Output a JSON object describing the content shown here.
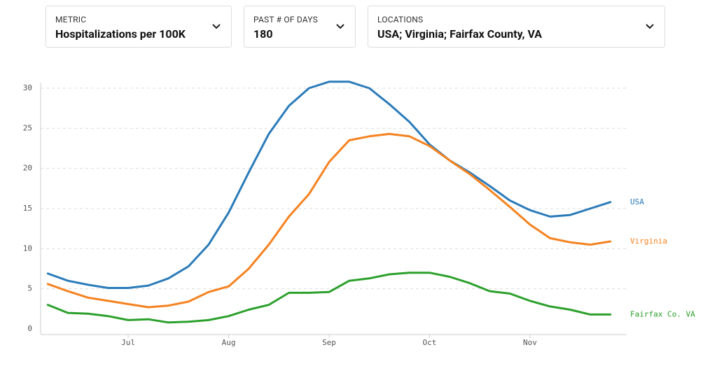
{
  "controls": [
    {
      "label": "METRIC",
      "value": "Hospitalizations per 100K"
    },
    {
      "label": "PAST # OF DAYS",
      "value": "180"
    },
    {
      "label": "LOCATIONS",
      "value": "USA; Virginia; Fairfax County, VA"
    }
  ],
  "chart_data": {
    "type": "line",
    "categories": [
      null,
      null,
      null,
      null,
      "Jul",
      null,
      null,
      null,
      null,
      "Aug",
      null,
      null,
      null,
      null,
      "Sep",
      null,
      null,
      null,
      null,
      "Oct",
      null,
      null,
      null,
      null,
      "Nov",
      null,
      null,
      null,
      null
    ],
    "series": [
      {
        "name": "USA",
        "color": "#2b7bb9",
        "values": [
          6.9,
          6.0,
          5.5,
          5.1,
          5.1,
          5.4,
          6.3,
          7.8,
          10.5,
          14.5,
          19.5,
          24.3,
          27.8,
          30.0,
          30.8,
          30.8,
          30.0,
          28.0,
          25.8,
          23.0,
          21.0,
          19.5,
          17.8,
          16.0,
          14.8,
          14.0,
          14.2,
          15.0,
          15.8
        ]
      },
      {
        "name": "Virginia",
        "color": "#f58220",
        "values": [
          5.6,
          4.7,
          3.9,
          3.5,
          3.1,
          2.7,
          2.9,
          3.4,
          4.6,
          5.3,
          7.5,
          10.5,
          14.0,
          16.8,
          20.8,
          23.5,
          24.0,
          24.3,
          24.0,
          22.8,
          21.0,
          19.3,
          17.3,
          15.2,
          13.0,
          11.3,
          10.8,
          10.5,
          10.9
        ]
      },
      {
        "name": "Fairfax Co. VA",
        "color": "#2ca02c",
        "values": [
          3.0,
          2.0,
          1.9,
          1.6,
          1.1,
          1.2,
          0.8,
          0.9,
          1.1,
          1.6,
          2.4,
          3.0,
          4.5,
          4.5,
          4.6,
          6.0,
          6.3,
          6.8,
          7.0,
          7.0,
          6.5,
          5.7,
          4.7,
          4.4,
          3.5,
          2.8,
          2.4,
          1.8,
          1.8
        ]
      }
    ],
    "ylim": [
      0,
      30
    ],
    "yticks": [
      0,
      5,
      10,
      15,
      20,
      25,
      30
    ],
    "grid": true
  }
}
